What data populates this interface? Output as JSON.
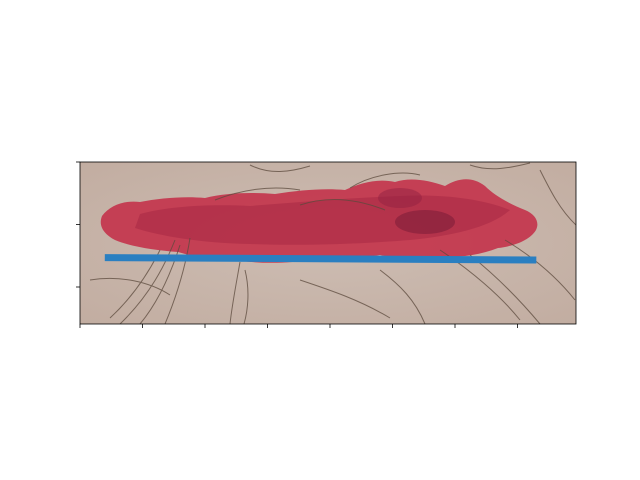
{
  "chart_data": {
    "type": "line",
    "background_image": "wound-photo",
    "x": [
      0.05,
      0.92
    ],
    "y": [
      0.59,
      0.605
    ],
    "xlim": [
      0.0,
      1.0
    ],
    "ylim": [
      0.0,
      1.0
    ],
    "xticks": [
      0,
      1,
      2,
      3,
      4,
      5,
      6,
      7
    ],
    "yticks": [
      0,
      1,
      2
    ],
    "tick_labels_visible": false,
    "grid": false,
    "line_color": "#2a7fc1"
  },
  "colors": {
    "skin": "#c8b6ab",
    "wound": "#c43a52",
    "wound_dark": "#8e1f3b",
    "hair": "#5c4a3d",
    "axes": "#000000"
  }
}
